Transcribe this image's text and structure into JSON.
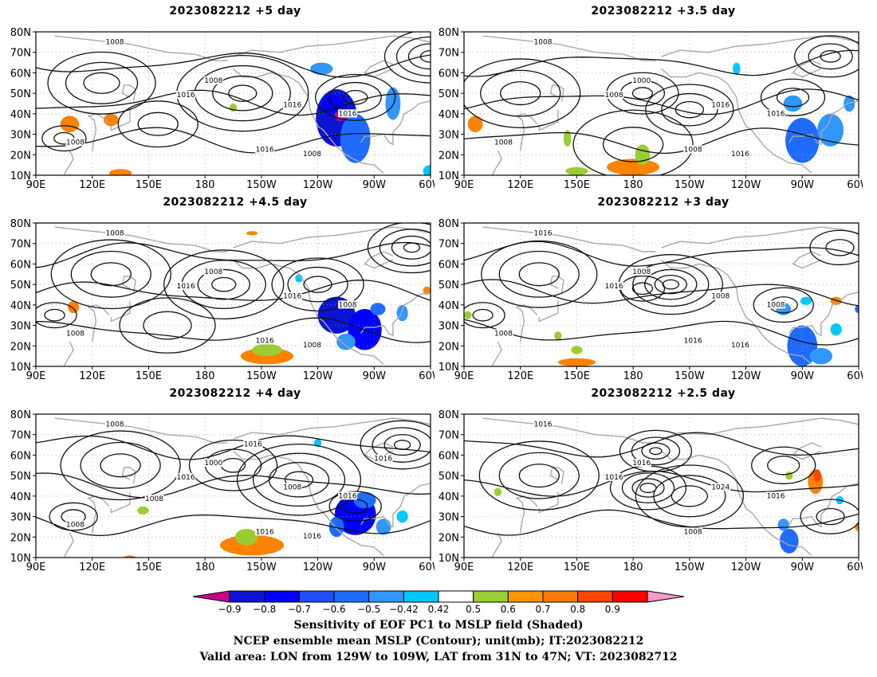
{
  "panels": [
    {
      "title": "2023082212 +5 day",
      "contour_labels": [
        "1008",
        "1008",
        "1016",
        "1016",
        "1016",
        "1016",
        "1008",
        "1008"
      ],
      "blobs": [
        {
          "lon": -110,
          "lat": 38,
          "rx": 11,
          "ry": 14,
          "color": "#0a14d2"
        },
        {
          "lon": -112,
          "lat": 44,
          "rx": 6,
          "ry": 5,
          "color": "#0000ff"
        },
        {
          "lon": -108,
          "lat": 39,
          "rx": 3,
          "ry": 2.5,
          "color": "#d2008c"
        },
        {
          "lon": -100,
          "lat": 28,
          "rx": 8,
          "ry": 12,
          "color": "#1f6bff"
        },
        {
          "lon": -118,
          "lat": 62,
          "rx": 6,
          "ry": 3,
          "color": "#3296ff"
        },
        {
          "lon": -80,
          "lat": 45,
          "rx": 4,
          "ry": 8,
          "color": "#3296ff"
        },
        {
          "lon": -60,
          "lat": 12,
          "rx": 4,
          "ry": 3,
          "color": "#00c8ff"
        },
        {
          "lon": 108,
          "lat": 35,
          "rx": 5,
          "ry": 4,
          "color": "#ff8200"
        },
        {
          "lon": 130,
          "lat": 37,
          "rx": 4,
          "ry": 3,
          "color": "#ff8200"
        },
        {
          "lon": 135,
          "lat": 11,
          "rx": 6,
          "ry": 2,
          "color": "#ff8200"
        },
        {
          "lon": 195,
          "lat": 43,
          "rx": 2,
          "ry": 2,
          "color": "#9acd32"
        }
      ]
    },
    {
      "title": "2023082212 +3.5 day",
      "contour_labels": [
        "1008",
        "1000",
        "1008",
        "1016",
        "1016",
        "1008",
        "1016",
        "1008"
      ],
      "blobs": [
        {
          "lon": -90,
          "lat": 27,
          "rx": 9,
          "ry": 11,
          "color": "#1f6bff"
        },
        {
          "lon": -75,
          "lat": 32,
          "rx": 7,
          "ry": 8,
          "color": "#3296ff"
        },
        {
          "lon": -95,
          "lat": 45,
          "rx": 5,
          "ry": 4,
          "color": "#3296ff"
        },
        {
          "lon": -65,
          "lat": 45,
          "rx": 3,
          "ry": 4,
          "color": "#3296ff"
        },
        {
          "lon": -55,
          "lat": 40,
          "rx": 4,
          "ry": 5,
          "color": "#00c8ff"
        },
        {
          "lon": -125,
          "lat": 62,
          "rx": 2,
          "ry": 3,
          "color": "#00c8ff"
        },
        {
          "lon": 180,
          "lat": 14,
          "rx": 14,
          "ry": 4,
          "color": "#ff8200"
        },
        {
          "lon": 185,
          "lat": 20,
          "rx": 4,
          "ry": 5,
          "color": "#9acd32"
        },
        {
          "lon": 150,
          "lat": 12,
          "rx": 6,
          "ry": 2,
          "color": "#9acd32"
        },
        {
          "lon": 96,
          "lat": 35,
          "rx": 4,
          "ry": 4,
          "color": "#ff8200"
        },
        {
          "lon": 145,
          "lat": 28,
          "rx": 2,
          "ry": 4,
          "color": "#9acd32"
        }
      ]
    },
    {
      "title": "2023082212 +4.5 day",
      "contour_labels": [
        "1008",
        "1008",
        "1016",
        "1016",
        "1008",
        "1016",
        "1008",
        "1008"
      ],
      "blobs": [
        {
          "lon": -110,
          "lat": 35,
          "rx": 10,
          "ry": 9,
          "color": "#0a14d2"
        },
        {
          "lon": -95,
          "lat": 28,
          "rx": 9,
          "ry": 10,
          "color": "#0000ff"
        },
        {
          "lon": -88,
          "lat": 38,
          "rx": 4,
          "ry": 3,
          "color": "#1f6bff"
        },
        {
          "lon": -105,
          "lat": 22,
          "rx": 5,
          "ry": 4,
          "color": "#3296ff"
        },
        {
          "lon": -75,
          "lat": 36,
          "rx": 3,
          "ry": 4,
          "color": "#3296ff"
        },
        {
          "lon": -130,
          "lat": 53,
          "rx": 2,
          "ry": 2,
          "color": "#00c8ff"
        },
        {
          "lon": -147,
          "lat": 15,
          "rx": 14,
          "ry": 4,
          "color": "#ff8200"
        },
        {
          "lon": -147,
          "lat": 18,
          "rx": 8,
          "ry": 3,
          "color": "#9acd32"
        },
        {
          "lon": 110,
          "lat": 39,
          "rx": 3,
          "ry": 3,
          "color": "#ff8200"
        },
        {
          "lon": -155,
          "lat": 75,
          "rx": 3,
          "ry": 1,
          "color": "#ff8200"
        },
        {
          "lon": -62,
          "lat": 47,
          "rx": 2,
          "ry": 2,
          "color": "#ff8200"
        }
      ]
    },
    {
      "title": "2023082212 +3 day",
      "contour_labels": [
        "1016",
        "1008",
        "1016",
        "1008",
        "1008",
        "1016",
        "1016",
        "1008"
      ],
      "blobs": [
        {
          "lon": -90,
          "lat": 20,
          "rx": 8,
          "ry": 10,
          "color": "#1f6bff"
        },
        {
          "lon": -80,
          "lat": 15,
          "rx": 6,
          "ry": 4,
          "color": "#3296ff"
        },
        {
          "lon": -72,
          "lat": 28,
          "rx": 3,
          "ry": 3,
          "color": "#00c8ff"
        },
        {
          "lon": -100,
          "lat": 38,
          "rx": 4,
          "ry": 3,
          "color": "#3296ff"
        },
        {
          "lon": -88,
          "lat": 42,
          "rx": 3,
          "ry": 2,
          "color": "#00c8ff"
        },
        {
          "lon": -60,
          "lat": 38,
          "rx": 2,
          "ry": 2,
          "color": "#1f6bff"
        },
        {
          "lon": -72,
          "lat": 42,
          "rx": 3,
          "ry": 2,
          "color": "#ff8200"
        },
        {
          "lon": 150,
          "lat": 12,
          "rx": 10,
          "ry": 2,
          "color": "#ff8200"
        },
        {
          "lon": 140,
          "lat": 25,
          "rx": 2,
          "ry": 2,
          "color": "#9acd32"
        },
        {
          "lon": 150,
          "lat": 18,
          "rx": 3,
          "ry": 2,
          "color": "#9acd32"
        },
        {
          "lon": 92,
          "lat": 35,
          "rx": 2,
          "ry": 2,
          "color": "#9acd32"
        }
      ]
    },
    {
      "title": "2023082212 +4 day",
      "contour_labels": [
        "1008",
        "1000",
        "1016",
        "1008",
        "1016",
        "1016",
        "1016",
        "1008",
        "1016",
        "1016",
        "1008"
      ],
      "blobs": [
        {
          "lon": -100,
          "lat": 31,
          "rx": 11,
          "ry": 10,
          "color": "#0000ff"
        },
        {
          "lon": -95,
          "lat": 38,
          "rx": 6,
          "ry": 4,
          "color": "#1f6bff"
        },
        {
          "lon": -110,
          "lat": 25,
          "rx": 4,
          "ry": 5,
          "color": "#1f6bff"
        },
        {
          "lon": -85,
          "lat": 25,
          "rx": 4,
          "ry": 4,
          "color": "#3296ff"
        },
        {
          "lon": -75,
          "lat": 30,
          "rx": 3,
          "ry": 3,
          "color": "#00c8ff"
        },
        {
          "lon": -155,
          "lat": 16,
          "rx": 17,
          "ry": 5,
          "color": "#ff8200"
        },
        {
          "lon": -158,
          "lat": 20,
          "rx": 6,
          "ry": 4,
          "color": "#9acd32"
        },
        {
          "lon": 147,
          "lat": 33,
          "rx": 3,
          "ry": 2,
          "color": "#9acd32"
        },
        {
          "lon": -120,
          "lat": 66,
          "rx": 2,
          "ry": 2,
          "color": "#00c8ff"
        },
        {
          "lon": 140,
          "lat": 10,
          "rx": 3,
          "ry": 1,
          "color": "#ff8200"
        }
      ]
    },
    {
      "title": "2023082212 +2.5 day",
      "contour_labels": [
        "1016",
        "1016",
        "1016",
        "1024",
        "1016",
        "1008"
      ],
      "blobs": [
        {
          "lon": -83,
          "lat": 47,
          "rx": 4,
          "ry": 6,
          "color": "#ff8200"
        },
        {
          "lon": -82,
          "lat": 50,
          "rx": 2,
          "ry": 3,
          "color": "#ff4500"
        },
        {
          "lon": -97,
          "lat": 18,
          "rx": 5,
          "ry": 6,
          "color": "#1f6bff"
        },
        {
          "lon": -100,
          "lat": 26,
          "rx": 3,
          "ry": 3,
          "color": "#3296ff"
        },
        {
          "lon": -103,
          "lat": 40,
          "rx": 2,
          "ry": 2,
          "color": "#00c8ff"
        },
        {
          "lon": -60,
          "lat": 25,
          "rx": 2,
          "ry": 2,
          "color": "#ff8200"
        },
        {
          "lon": -70,
          "lat": 38,
          "rx": 2,
          "ry": 2,
          "color": "#00c8ff"
        },
        {
          "lon": -97,
          "lat": 50,
          "rx": 2,
          "ry": 2,
          "color": "#9acd32"
        },
        {
          "lon": 108,
          "lat": 42,
          "rx": 2,
          "ry": 2,
          "color": "#9acd32"
        }
      ]
    }
  ],
  "axes": {
    "lat_ticks": [
      "10N",
      "20N",
      "30N",
      "40N",
      "50N",
      "60N",
      "70N",
      "80N"
    ],
    "lon_ticks": [
      "90E",
      "120E",
      "150E",
      "180",
      "150W",
      "120W",
      "90W",
      "60W"
    ],
    "lon_range": [
      90,
      300
    ],
    "lat_range": [
      10,
      80
    ]
  },
  "colorbar": {
    "labels": [
      "−0.9",
      "−0.8",
      "−0.7",
      "−0.6",
      "−0.5",
      "−0.42",
      "0.42",
      "0.5",
      "0.6",
      "0.7",
      "0.8",
      "0.9"
    ],
    "colors": [
      "#c8008c",
      "#0a14d2",
      "#0000ff",
      "#1f50ff",
      "#1f6bff",
      "#3296ff",
      "#00c8ff",
      "#ffffff",
      "#9acd32",
      "#ff9600",
      "#ff7800",
      "#ff4500",
      "#ff0000",
      "#ff9ac8"
    ]
  },
  "caption": {
    "line1": "Sensitivity of EOF PC1 to MSLP field (Shaded)",
    "line2": "NCEP ensemble mean MSLP (Contour); unit(mb); IT:2023082212",
    "line3": "Valid area: LON from 129W to 109W, LAT from 31N to 47N; VT: 2023082712"
  }
}
